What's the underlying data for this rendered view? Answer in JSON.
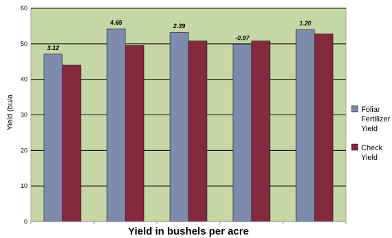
{
  "chart_data": {
    "type": "bar",
    "xlabel": "Yield in bushels per acre",
    "ylabel": "Yield  (bu/a",
    "ylim": [
      0,
      60
    ],
    "yticks": [
      0,
      10,
      20,
      30,
      40,
      50,
      60
    ],
    "grid": true,
    "legend_position": "right",
    "plot_background": "#c7d6a5",
    "categories": [
      "",
      "",
      "",
      "",
      ""
    ],
    "series": [
      {
        "name": "Foliar Fertilizer Yield",
        "name_lines": [
          "Foliar",
          "Fertilizer",
          "Yield"
        ],
        "color": "#7f8bad",
        "values": [
          47.1,
          54.2,
          53.2,
          49.9,
          54.0
        ]
      },
      {
        "name": "Check Yield",
        "name_lines": [
          "Check",
          "Yield"
        ],
        "color": "#85293f",
        "values": [
          44.0,
          49.5,
          50.8,
          50.8,
          52.8
        ]
      }
    ],
    "data_labels": [
      "3.12",
      "4.65",
      "2.39",
      "-0.97",
      "1.20"
    ]
  }
}
